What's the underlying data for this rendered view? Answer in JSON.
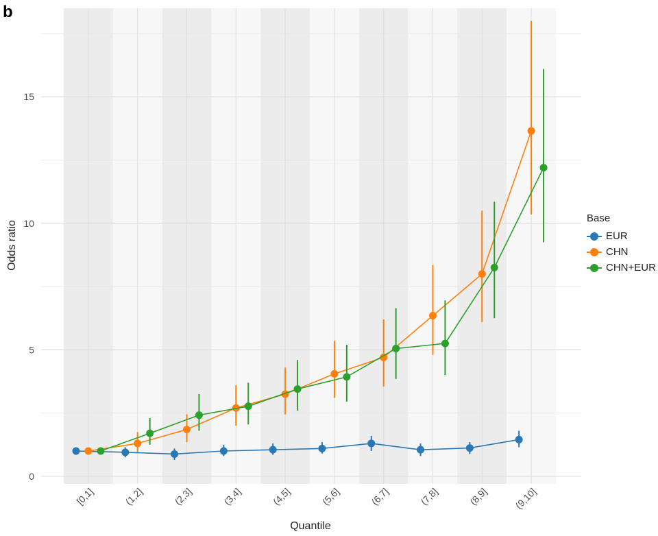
{
  "panel_label": "b",
  "chart_data": {
    "type": "line",
    "xlabel": "Quantile",
    "ylabel": "Odds ratio",
    "categories": [
      "[0,1]",
      "(1,2]",
      "(2,3]",
      "(3,4]",
      "(4,5]",
      "(5,6]",
      "(6,7]",
      "(7,8]",
      "(8,9]",
      "(9,10]"
    ],
    "ylim": [
      -0.3,
      18.5
    ],
    "yticks": [
      0,
      5,
      10,
      15
    ],
    "grid": true,
    "alternating_bands": true,
    "legend_position": "right",
    "legend_title": "Base",
    "series": [
      {
        "name": "EUR",
        "color": "#2878b5",
        "values": [
          1.0,
          0.95,
          0.88,
          1.0,
          1.05,
          1.1,
          1.3,
          1.05,
          1.12,
          1.45
        ],
        "lower": [
          0.85,
          0.75,
          0.65,
          0.8,
          0.85,
          0.9,
          1.0,
          0.8,
          0.88,
          1.15
        ],
        "upper": [
          1.12,
          1.15,
          1.1,
          1.25,
          1.3,
          1.35,
          1.6,
          1.3,
          1.35,
          1.8
        ]
      },
      {
        "name": "CHN",
        "color": "#ff7f0e",
        "values": [
          1.0,
          1.3,
          1.85,
          2.7,
          3.25,
          4.05,
          4.7,
          6.35,
          8.0,
          13.65
        ],
        "lower": [
          0.9,
          0.95,
          1.35,
          2.0,
          2.45,
          3.1,
          3.55,
          4.8,
          6.1,
          10.35
        ],
        "upper": [
          1.1,
          1.75,
          2.45,
          3.6,
          4.3,
          5.35,
          6.2,
          8.35,
          10.5,
          18.0
        ]
      },
      {
        "name": "CHN+EUR",
        "color": "#2ca02c",
        "values": [
          1.0,
          1.7,
          2.42,
          2.77,
          3.45,
          3.93,
          5.05,
          5.25,
          8.25,
          12.2
        ],
        "lower": [
          0.9,
          1.25,
          1.8,
          2.05,
          2.6,
          2.95,
          3.85,
          4.0,
          6.25,
          9.25
        ],
        "upper": [
          1.1,
          2.3,
          3.25,
          3.7,
          4.6,
          5.2,
          6.65,
          6.95,
          10.85,
          16.1
        ]
      }
    ]
  }
}
